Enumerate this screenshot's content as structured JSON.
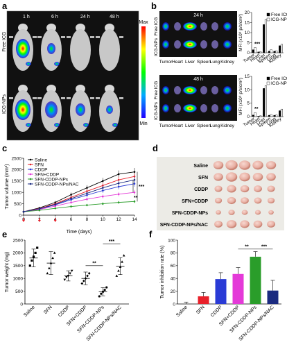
{
  "panels": {
    "a": {
      "label": "a",
      "times": [
        "1 h",
        "6 h",
        "24 h",
        "48 h"
      ],
      "rows": [
        "Free ICG",
        "ICG-NPs"
      ],
      "colorbar": {
        "max": "Max",
        "min": "Min"
      }
    },
    "b": {
      "label": "b",
      "times": [
        "24 h",
        "48 h"
      ],
      "rows": [
        "Free ICG",
        "ICG-NPs"
      ],
      "organs": [
        "Tumor",
        "Heart",
        "Liver",
        "Spleen",
        "Lung",
        "Kidney"
      ],
      "charts": [
        {
          "ylabel": "MFI (x10⁹ p/s/cm²)",
          "yticks": [
            "0",
            "5",
            "10",
            "15",
            "20"
          ],
          "ylim": [
            0,
            20
          ],
          "categories": [
            "Tumor",
            "Heart",
            "Liver",
            "Spleen",
            "Lung",
            "Kidney"
          ],
          "series": [
            {
              "name": "Free ICG",
              "values": [
                1.5,
                0.4,
                14,
                0.8,
                0.8,
                3.5
              ]
            },
            {
              "name": "ICG-NPs",
              "values": [
                2.6,
                0.5,
                16.5,
                1.5,
                1.0,
                4.2
              ]
            }
          ],
          "stars": "***"
        },
        {
          "ylabel": "MFI (x10⁹ p/s/cm²)",
          "yticks": [
            "0",
            "5",
            "10",
            "15"
          ],
          "ylim": [
            0,
            15
          ],
          "categories": [
            "Tumor",
            "Heart",
            "Liver",
            "Spleen",
            "Lung",
            "Kidney"
          ],
          "series": [
            {
              "name": "Free ICG",
              "values": [
                0.6,
                0.2,
                10.5,
                0.5,
                0.5,
                2.2
              ]
            },
            {
              "name": "ICG-NPs",
              "values": [
                1.5,
                0.3,
                11.5,
                0.8,
                0.6,
                2.8
              ]
            }
          ],
          "stars": "**"
        }
      ]
    },
    "c": {
      "label": "c",
      "ylabel": "Tumor volume (mm³)",
      "xlabel": "Time (days)",
      "yticks": [
        "0",
        "500",
        "1000",
        "1500",
        "2000",
        "2500"
      ],
      "xticks": [
        "0",
        "2",
        "4",
        "6",
        "8",
        "10",
        "12",
        "14"
      ],
      "stars": [
        "***",
        "**"
      ]
    },
    "d": {
      "label": "d",
      "groups": [
        "Saline",
        "SFN",
        "CDDP",
        "SFN+CDDP",
        "SFN-CDDP-NPs",
        "SFN-CDDP-NPs/NAC"
      ]
    },
    "e": {
      "label": "e",
      "ylabel": "Tumor weight (mg)",
      "yticks": [
        "0",
        "500",
        "1000",
        "1500",
        "2000",
        "2500"
      ],
      "stars": [
        "**",
        "***"
      ]
    },
    "f": {
      "label": "f",
      "ylabel": "Tumor inhibition rate (%)",
      "yticks": [
        "0",
        "20",
        "40",
        "60",
        "80",
        "100"
      ],
      "stars": [
        "**",
        "***"
      ]
    }
  },
  "chart_data": [
    {
      "type": "line",
      "panel": "c",
      "x": [
        0,
        2,
        4,
        6,
        8,
        10,
        12,
        14
      ],
      "ylim": [
        0,
        2500
      ],
      "xlim": [
        0,
        14
      ],
      "series": [
        {
          "name": "Saline",
          "color": "#000000",
          "values": [
            150,
            320,
            560,
            900,
            1200,
            1500,
            1800,
            1900
          ]
        },
        {
          "name": "SFN",
          "color": "#e8202a",
          "values": [
            150,
            290,
            500,
            780,
            1050,
            1300,
            1550,
            1700
          ]
        },
        {
          "name": "CDDP",
          "color": "#2a3bd6",
          "values": [
            150,
            270,
            450,
            680,
            880,
            1080,
            1250,
            1380
          ]
        },
        {
          "name": "SFN+CDDP",
          "color": "#e43ad8",
          "values": [
            150,
            250,
            400,
            560,
            700,
            820,
            920,
            1000
          ]
        },
        {
          "name": "SFN-CDDP-NPs",
          "color": "#2a9d2a",
          "values": [
            150,
            210,
            300,
            380,
            440,
            500,
            560,
            600
          ]
        },
        {
          "name": "SFN-CDDP-NPs/NAC",
          "color": "#1a2a80",
          "values": [
            150,
            280,
            470,
            730,
            960,
            1200,
            1400,
            1550
          ]
        }
      ]
    },
    {
      "type": "scatter",
      "panel": "e",
      "categories": [
        "Saline",
        "SFN",
        "CDDP",
        "SFN+CDDP",
        "SFN-CDDP-NPs",
        "SFN-CDDP-NPs/NAC"
      ],
      "ylim": [
        0,
        2500
      ],
      "means": [
        1800,
        1600,
        1100,
        1000,
        480,
        1480
      ],
      "errors": [
        350,
        450,
        200,
        250,
        160,
        330
      ],
      "points": [
        [
          1500,
          1700,
          1850,
          2000,
          2200
        ],
        [
          1200,
          1400,
          1600,
          1800,
          2000
        ],
        [
          950,
          1050,
          1100,
          1200,
          1300
        ],
        [
          800,
          900,
          1000,
          1100,
          1200
        ],
        [
          300,
          400,
          480,
          550,
          650
        ],
        [
          1100,
          1300,
          1450,
          1650,
          1900
        ]
      ]
    },
    {
      "type": "bar",
      "panel": "f",
      "categories": [
        "Saline",
        "SFN",
        "CDDP",
        "SFN+CDDP",
        "SFN-CDDP-NPs",
        "SFN-CDDP-NPs/NAC"
      ],
      "ylim": [
        0,
        100
      ],
      "values": [
        0,
        12,
        39,
        47,
        74,
        21
      ],
      "errors": [
        3,
        6,
        10,
        10,
        8,
        16
      ],
      "colors": [
        "#000000",
        "#e8202a",
        "#2a3bd6",
        "#e43ad8",
        "#2a9d2a",
        "#1a2a80"
      ]
    }
  ]
}
